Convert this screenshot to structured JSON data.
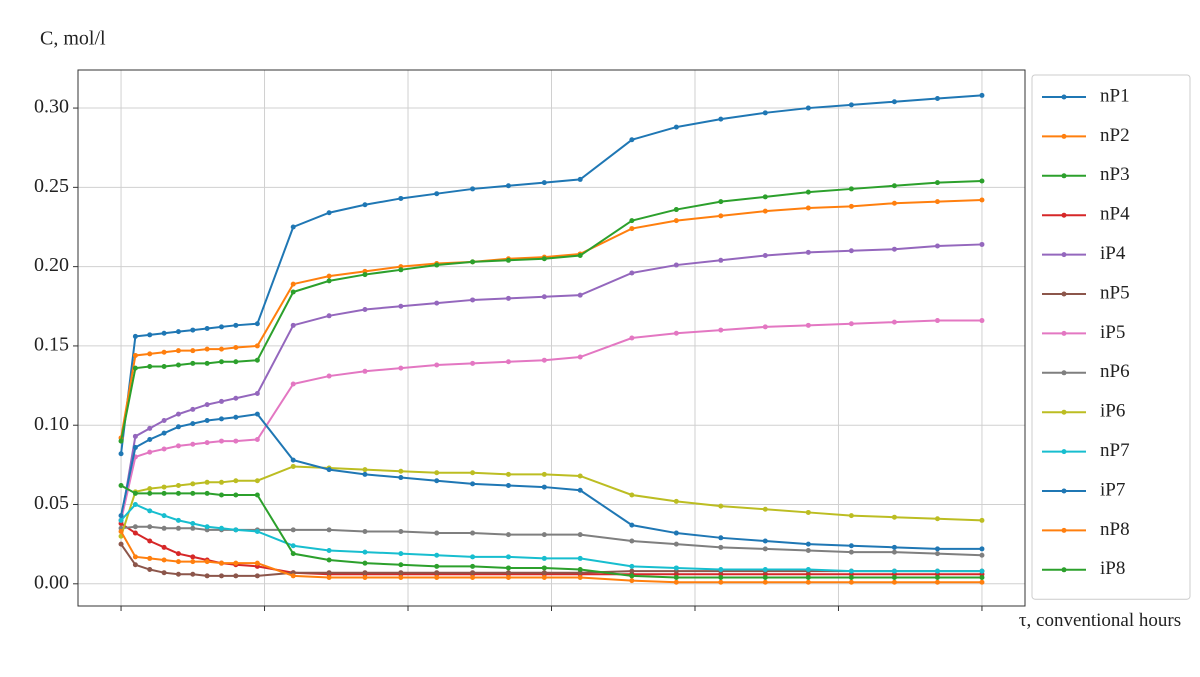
{
  "chart_data": {
    "type": "line",
    "ylabel": "C, mol/l",
    "xlabel": "τ, conventional hours",
    "x": [
      0,
      0.1,
      0.2,
      0.3,
      0.4,
      0.5,
      0.6,
      0.7,
      0.8,
      0.95,
      1.2,
      1.45,
      1.7,
      1.95,
      2.2,
      2.45,
      2.7,
      2.95,
      3.2,
      3.56,
      3.87,
      4.18,
      4.49,
      4.79,
      5.09,
      5.39,
      5.69,
      6.0
    ],
    "xlim": [
      -0.3,
      6.3
    ],
    "xticks": [
      0,
      1,
      2,
      3,
      4,
      5,
      6
    ],
    "ylim": [
      -0.014,
      0.324
    ],
    "yticks": [
      {
        "value": 0,
        "label": "0.00"
      },
      {
        "value": 0.05,
        "label": "0.05"
      },
      {
        "value": 0.1,
        "label": "0.10"
      },
      {
        "value": 0.15,
        "label": "0.15"
      },
      {
        "value": 0.2,
        "label": "0.20"
      },
      {
        "value": 0.25,
        "label": "0.25"
      },
      {
        "value": 0.3,
        "label": "0.30"
      }
    ],
    "grid": true,
    "legend": "outside right",
    "series": [
      {
        "name": "nP1",
        "color": "#1f77b4",
        "values": [
          0.082,
          0.156,
          0.157,
          0.158,
          0.159,
          0.16,
          0.161,
          0.162,
          0.163,
          0.164,
          0.225,
          0.234,
          0.239,
          0.243,
          0.246,
          0.249,
          0.251,
          0.253,
          0.255,
          0.28,
          0.288,
          0.293,
          0.297,
          0.3,
          0.302,
          0.304,
          0.306,
          0.308
        ]
      },
      {
        "name": "nP2",
        "color": "#ff7f0e",
        "values": [
          0.092,
          0.144,
          0.145,
          0.146,
          0.147,
          0.147,
          0.148,
          0.148,
          0.149,
          0.15,
          0.189,
          0.194,
          0.197,
          0.2,
          0.202,
          0.203,
          0.205,
          0.206,
          0.208,
          0.224,
          0.229,
          0.232,
          0.235,
          0.237,
          0.238,
          0.24,
          0.241,
          0.242
        ]
      },
      {
        "name": "nP3",
        "color": "#2ca02c",
        "values": [
          0.09,
          0.136,
          0.137,
          0.137,
          0.138,
          0.139,
          0.139,
          0.14,
          0.14,
          0.141,
          0.184,
          0.191,
          0.195,
          0.198,
          0.201,
          0.203,
          0.204,
          0.205,
          0.207,
          0.229,
          0.236,
          0.241,
          0.244,
          0.247,
          0.249,
          0.251,
          0.253,
          0.254
        ]
      },
      {
        "name": "nP4",
        "color": "#d62728",
        "values": [
          0.038,
          0.032,
          0.027,
          0.023,
          0.019,
          0.017,
          0.015,
          0.013,
          0.012,
          0.011,
          0.007,
          0.006,
          0.006,
          0.006,
          0.006,
          0.006,
          0.006,
          0.006,
          0.006,
          0.006,
          0.006,
          0.006,
          0.006,
          0.006,
          0.006,
          0.006,
          0.006,
          0.006
        ]
      },
      {
        "name": "iP4",
        "color": "#9467bd",
        "values": [
          0.04,
          0.093,
          0.098,
          0.103,
          0.107,
          0.11,
          0.113,
          0.115,
          0.117,
          0.12,
          0.163,
          0.169,
          0.173,
          0.175,
          0.177,
          0.179,
          0.18,
          0.181,
          0.182,
          0.196,
          0.201,
          0.204,
          0.207,
          0.209,
          0.21,
          0.211,
          0.213,
          0.214
        ]
      },
      {
        "name": "nP5",
        "color": "#8c564b",
        "values": [
          0.025,
          0.012,
          0.009,
          0.007,
          0.006,
          0.006,
          0.005,
          0.005,
          0.005,
          0.005,
          0.007,
          0.007,
          0.007,
          0.007,
          0.007,
          0.007,
          0.007,
          0.007,
          0.007,
          0.008,
          0.008,
          0.008,
          0.008,
          0.008,
          0.008,
          0.008,
          0.008,
          0.008
        ]
      },
      {
        "name": "iP5",
        "color": "#e377c2",
        "values": [
          0.04,
          0.08,
          0.083,
          0.085,
          0.087,
          0.088,
          0.089,
          0.09,
          0.09,
          0.091,
          0.126,
          0.131,
          0.134,
          0.136,
          0.138,
          0.139,
          0.14,
          0.141,
          0.143,
          0.155,
          0.158,
          0.16,
          0.162,
          0.163,
          0.164,
          0.165,
          0.166,
          0.166
        ]
      },
      {
        "name": "nP6",
        "color": "#7f7f7f",
        "values": [
          0.035,
          0.036,
          0.036,
          0.035,
          0.035,
          0.035,
          0.034,
          0.034,
          0.034,
          0.034,
          0.034,
          0.034,
          0.033,
          0.033,
          0.032,
          0.032,
          0.031,
          0.031,
          0.031,
          0.027,
          0.025,
          0.023,
          0.022,
          0.021,
          0.02,
          0.02,
          0.019,
          0.018
        ]
      },
      {
        "name": "iP6",
        "color": "#bcbd22",
        "values": [
          0.03,
          0.058,
          0.06,
          0.061,
          0.062,
          0.063,
          0.064,
          0.064,
          0.065,
          0.065,
          0.074,
          0.073,
          0.072,
          0.071,
          0.07,
          0.07,
          0.069,
          0.069,
          0.068,
          0.056,
          0.052,
          0.049,
          0.047,
          0.045,
          0.043,
          0.042,
          0.041,
          0.04
        ]
      },
      {
        "name": "nP7",
        "color": "#17becf",
        "values": [
          0.04,
          0.05,
          0.046,
          0.043,
          0.04,
          0.038,
          0.036,
          0.035,
          0.034,
          0.033,
          0.024,
          0.021,
          0.02,
          0.019,
          0.018,
          0.017,
          0.017,
          0.016,
          0.016,
          0.011,
          0.01,
          0.009,
          0.009,
          0.009,
          0.008,
          0.008,
          0.008,
          0.008
        ]
      },
      {
        "name": "iP7",
        "color": "#1f77b4",
        "values": [
          0.043,
          0.086,
          0.091,
          0.095,
          0.099,
          0.101,
          0.103,
          0.104,
          0.105,
          0.107,
          0.078,
          0.072,
          0.069,
          0.067,
          0.065,
          0.063,
          0.062,
          0.061,
          0.059,
          0.037,
          0.032,
          0.029,
          0.027,
          0.025,
          0.024,
          0.023,
          0.022,
          0.022
        ]
      },
      {
        "name": "nP8",
        "color": "#ff7f0e",
        "values": [
          0.033,
          0.017,
          0.016,
          0.015,
          0.014,
          0.014,
          0.014,
          0.013,
          0.013,
          0.013,
          0.005,
          0.004,
          0.004,
          0.004,
          0.004,
          0.004,
          0.004,
          0.004,
          0.004,
          0.002,
          0.001,
          0.001,
          0.001,
          0.001,
          0.001,
          0.001,
          0.001,
          0.001
        ]
      },
      {
        "name": "iP8",
        "color": "#2ca02c",
        "values": [
          0.062,
          0.057,
          0.057,
          0.057,
          0.057,
          0.057,
          0.057,
          0.056,
          0.056,
          0.056,
          0.019,
          0.015,
          0.013,
          0.012,
          0.011,
          0.011,
          0.01,
          0.01,
          0.009,
          0.005,
          0.004,
          0.004,
          0.004,
          0.004,
          0.004,
          0.004,
          0.004,
          0.004
        ]
      }
    ]
  }
}
